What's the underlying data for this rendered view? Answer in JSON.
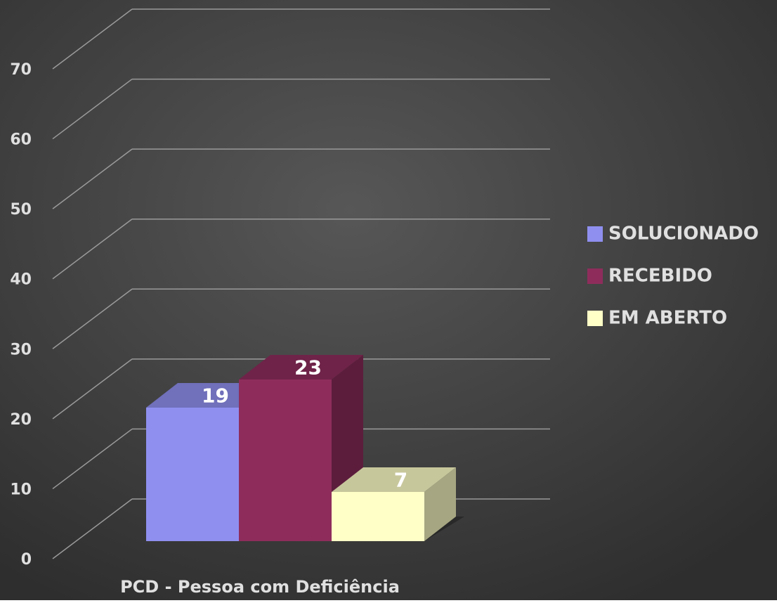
{
  "chart_data": {
    "type": "bar3d",
    "categories": [
      "PCD - Pessoa com Deficiência"
    ],
    "series": [
      {
        "name": "SOLUCIONADO",
        "color": "#8f8ff0",
        "values": [
          19
        ]
      },
      {
        "name": "RECEBIDO",
        "color": "#8e2d5c",
        "values": [
          23
        ]
      },
      {
        "name": "EM ABERTO",
        "color": "#ffffc8",
        "values": [
          7
        ]
      }
    ],
    "ylim": [
      0,
      70
    ],
    "yticks": [
      0,
      10,
      20,
      30,
      40,
      50,
      60,
      70
    ],
    "grid": true,
    "legend": "right"
  }
}
